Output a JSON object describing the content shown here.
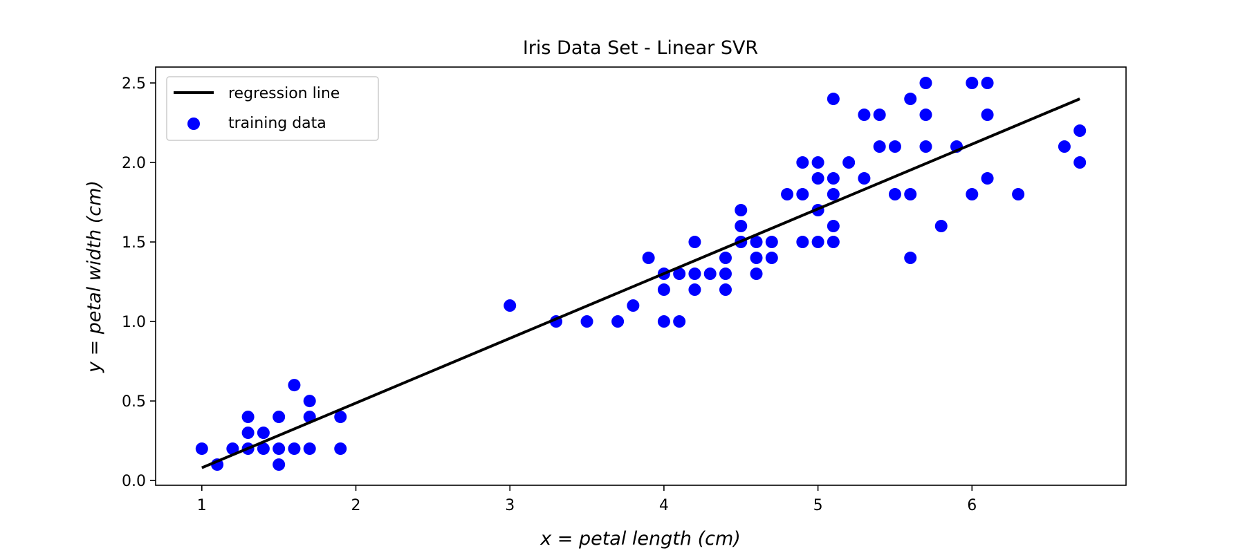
{
  "chart_data": {
    "type": "scatter",
    "title": "Iris Data Set - Linear SVR",
    "xlabel": "x = petal length (cm)",
    "ylabel": "y = petal width (cm)",
    "xlim": [
      0.7,
      7.0
    ],
    "ylim": [
      -0.03,
      2.6
    ],
    "xticks": [
      1,
      2,
      3,
      4,
      5,
      6
    ],
    "yticks": [
      0.0,
      0.5,
      1.0,
      1.5,
      2.0,
      2.5
    ],
    "xtick_labels": [
      "1",
      "2",
      "3",
      "4",
      "5",
      "6"
    ],
    "ytick_labels": [
      "0.0",
      "0.5",
      "1.0",
      "1.5",
      "2.0",
      "2.5"
    ],
    "grid": false,
    "legend_position": "top-left",
    "series": [
      {
        "name": "regression line",
        "kind": "line",
        "color": "#000000",
        "x": [
          1.0,
          6.7
        ],
        "y": [
          0.08,
          2.4
        ]
      },
      {
        "name": "training data",
        "kind": "scatter",
        "color": "#0000ff",
        "x": [
          1.0,
          1.1,
          1.2,
          1.3,
          1.3,
          1.3,
          1.4,
          1.4,
          1.5,
          1.5,
          1.5,
          1.6,
          1.6,
          1.7,
          1.7,
          1.7,
          1.9,
          1.9,
          3.0,
          3.3,
          3.5,
          3.7,
          3.8,
          3.9,
          4.0,
          4.0,
          4.0,
          4.1,
          4.1,
          4.2,
          4.2,
          4.2,
          4.3,
          4.4,
          4.4,
          4.4,
          4.5,
          4.5,
          4.5,
          4.6,
          4.6,
          4.6,
          4.7,
          4.7,
          4.8,
          4.9,
          4.9,
          4.9,
          5.0,
          5.0,
          5.0,
          5.0,
          5.1,
          5.1,
          5.1,
          5.1,
          5.1,
          5.2,
          5.3,
          5.3,
          5.4,
          5.4,
          5.5,
          5.5,
          5.6,
          5.6,
          5.6,
          5.7,
          5.7,
          5.7,
          5.8,
          5.9,
          6.0,
          6.0,
          6.1,
          6.1,
          6.1,
          6.3,
          6.6,
          6.7,
          6.7
        ],
        "y": [
          0.2,
          0.1,
          0.2,
          0.2,
          0.3,
          0.4,
          0.2,
          0.3,
          0.1,
          0.2,
          0.4,
          0.2,
          0.6,
          0.2,
          0.4,
          0.5,
          0.2,
          0.4,
          1.1,
          1.0,
          1.0,
          1.0,
          1.1,
          1.4,
          1.0,
          1.2,
          1.3,
          1.0,
          1.3,
          1.2,
          1.3,
          1.5,
          1.3,
          1.2,
          1.3,
          1.4,
          1.5,
          1.6,
          1.7,
          1.3,
          1.4,
          1.5,
          1.4,
          1.5,
          1.8,
          1.5,
          1.8,
          2.0,
          1.5,
          1.7,
          1.9,
          2.0,
          1.5,
          1.6,
          1.8,
          1.9,
          2.4,
          2.0,
          1.9,
          2.3,
          2.1,
          2.3,
          1.8,
          2.1,
          1.4,
          1.8,
          2.4,
          2.1,
          2.3,
          2.5,
          1.6,
          2.1,
          1.8,
          2.5,
          1.9,
          2.3,
          2.5,
          1.8,
          2.1,
          2.0,
          2.2
        ]
      }
    ]
  }
}
